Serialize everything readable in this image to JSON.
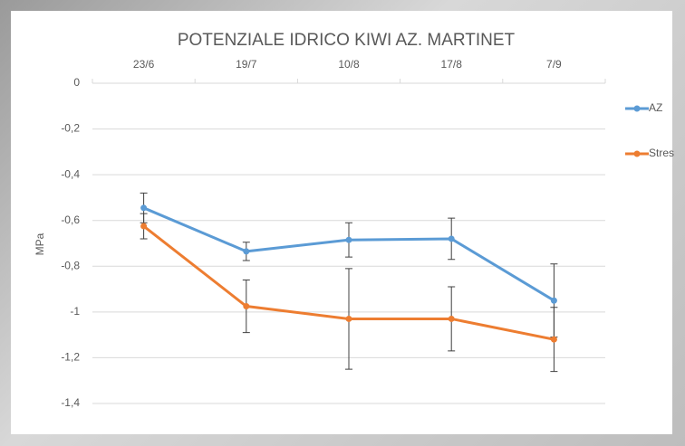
{
  "chart_data": {
    "type": "line",
    "title": "POTENZIALE IDRICO KIWI  AZ. MARTINET",
    "y_label": "MPa",
    "categories": [
      "23/6",
      "19/7",
      "10/8",
      "17/8",
      "7/9"
    ],
    "series": [
      {
        "name": "AZ",
        "color": "#5b9bd5",
        "values": [
          -0.545,
          -0.735,
          -0.685,
          -0.68,
          -0.95
        ],
        "errors": [
          0.065,
          0.04,
          0.075,
          0.09,
          0.16
        ]
      },
      {
        "name": "Stres",
        "color": "#ed7d31",
        "values": [
          -0.625,
          -0.975,
          -1.03,
          -1.03,
          -1.12
        ],
        "errors": [
          0.055,
          0.115,
          0.22,
          0.14,
          0.14
        ]
      }
    ],
    "ylim": [
      -1.4,
      0
    ],
    "yticks": [
      0,
      {
        "value": -0.2,
        "label": "-0,2"
      },
      {
        "value": -0.4,
        "label": "-0,4"
      },
      {
        "value": -0.6,
        "label": "-0,6"
      },
      {
        "value": -0.8,
        "label": "-0,8"
      },
      -1,
      {
        "value": -1.2,
        "label": "-1,2"
      },
      {
        "value": -1.4,
        "label": "-1,4"
      }
    ],
    "grid": true,
    "legend": "right"
  }
}
